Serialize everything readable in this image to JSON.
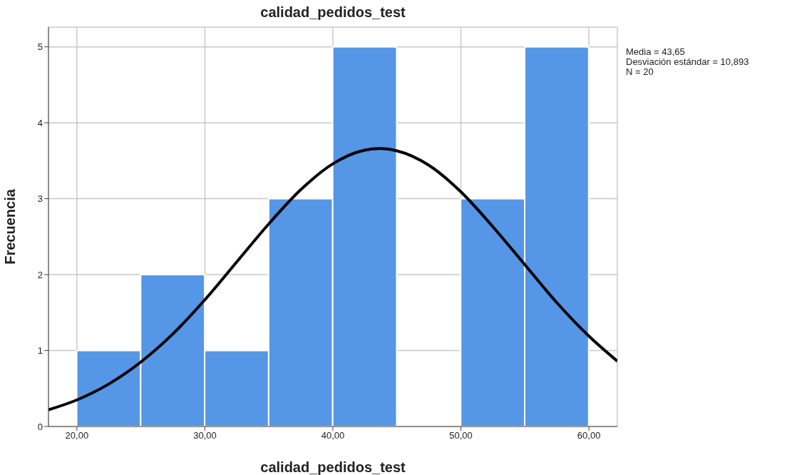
{
  "chart_data": {
    "type": "histogram",
    "title": "calidad_pedidos_test",
    "xlabel": "calidad_pedidos_test",
    "ylabel": "Frecuencia",
    "bins": [
      20,
      25,
      30,
      35,
      40,
      45,
      50,
      55,
      60
    ],
    "values": [
      1,
      2,
      1,
      3,
      5,
      0,
      3,
      5
    ],
    "color": "#5596e6",
    "series": [
      {
        "type": "line",
        "color": "#000000",
        "x": [
          17.78,
          20,
          22.5,
          25,
          27.5,
          30,
          32.5,
          35,
          37.5,
          40,
          42.5,
          43.65,
          45,
          47.5,
          50,
          52.5,
          55,
          57.5,
          60,
          62.22
        ],
        "values": [
          0.22,
          0.35,
          0.56,
          0.85,
          1.22,
          1.67,
          2.17,
          2.67,
          3.12,
          3.46,
          3.64,
          3.66,
          3.63,
          3.44,
          3.09,
          2.63,
          2.13,
          1.63,
          1.19,
          0.86
        ]
      }
    ],
    "xlim": [
      17.78,
      62.22
    ],
    "xticks": [
      {
        "value": 20,
        "label": "20,00"
      },
      {
        "value": 30,
        "label": "30,00"
      },
      {
        "value": 40,
        "label": "40,00"
      },
      {
        "value": 50,
        "label": "50,00"
      },
      {
        "value": 60,
        "label": "60,00"
      }
    ],
    "ylim": [
      0,
      5.26
    ],
    "yticks": [
      0,
      1,
      2,
      3,
      4,
      5
    ],
    "grid": true,
    "marker": "none",
    "line_style": "solid",
    "annotations": [
      "Media = 43,65",
      "Desviación estándar = 10,893",
      "N = 20"
    ]
  }
}
